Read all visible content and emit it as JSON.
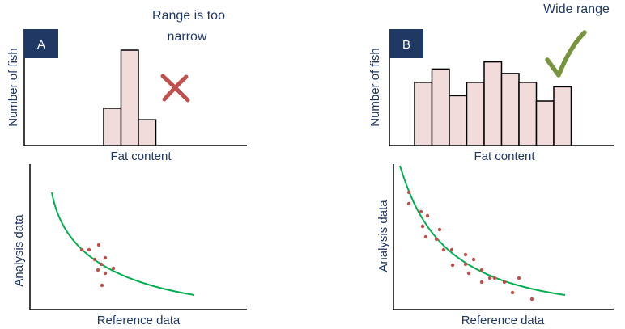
{
  "colors": {
    "axis": "#000000",
    "bar_fill": "#f2dcdb",
    "bar_stroke": "#000000",
    "badge": "#1f3864",
    "text": "#1f3864",
    "curve": "#00b050",
    "point": "#c0504d",
    "cross": "#c0504d",
    "check": "#77933c"
  },
  "panel_a": {
    "badge": "A",
    "note_line1": "Range is too",
    "note_line2": "narrow",
    "y_label": "Number of fish",
    "x_label": "Fat content",
    "mark_icon": "cross-icon",
    "histogram_values": [
      0.39,
      1.0,
      0.27
    ],
    "scatter_x_label": "Reference data",
    "scatter_y_label": "Analysis data"
  },
  "panel_b": {
    "badge": "B",
    "note": "Wide range",
    "y_label": "Number of fish",
    "x_label": "Fat content",
    "mark_icon": "checkmark-icon",
    "histogram_values": [
      0.71,
      0.86,
      0.56,
      0.71,
      0.94,
      0.81,
      0.71,
      0.5,
      0.66
    ],
    "scatter_x_label": "Reference data",
    "scatter_y_label": "Analysis data"
  }
}
